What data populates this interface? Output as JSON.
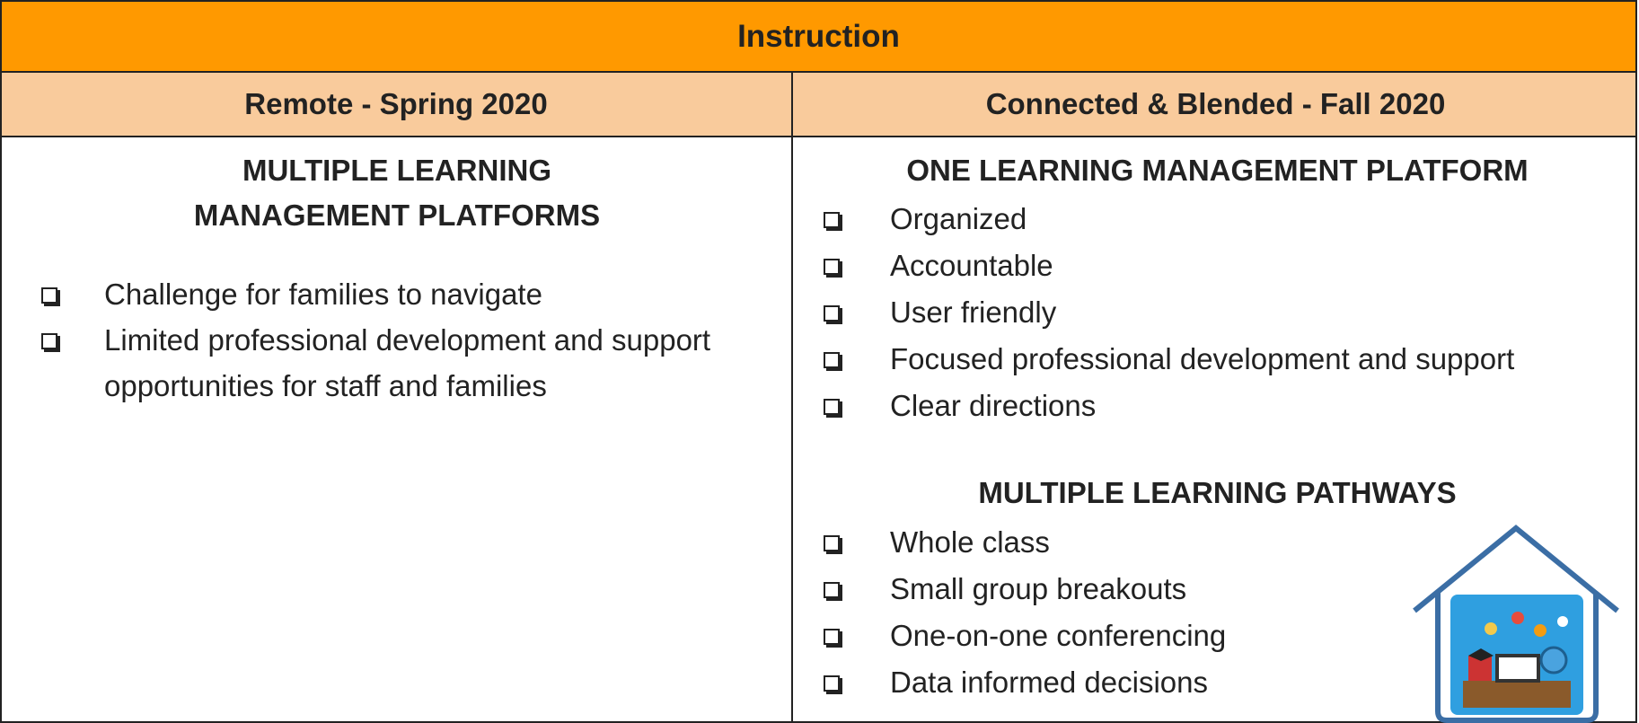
{
  "header": {
    "title": "Instruction"
  },
  "table": {
    "columns": [
      "Remote - Spring 2020",
      "Connected & Blended - Fall 2020"
    ]
  },
  "left": {
    "heading": "MULTIPLE LEARNING MANAGEMENT PLATFORMS",
    "items": [
      "Challenge for families to navigate",
      "Limited professional development and support opportunities for staff and families"
    ]
  },
  "right": {
    "sections": [
      {
        "heading": "ONE LEARNING MANAGEMENT PLATFORM",
        "items": [
          "Organized",
          "Accountable",
          "User friendly",
          "Focused professional development and support",
          "Clear directions"
        ]
      },
      {
        "heading": "MULTIPLE LEARNING PATHWAYS",
        "items": [
          "Whole class",
          "Small group breakouts",
          "One-on-one conferencing",
          "Data informed decisions"
        ]
      }
    ]
  }
}
